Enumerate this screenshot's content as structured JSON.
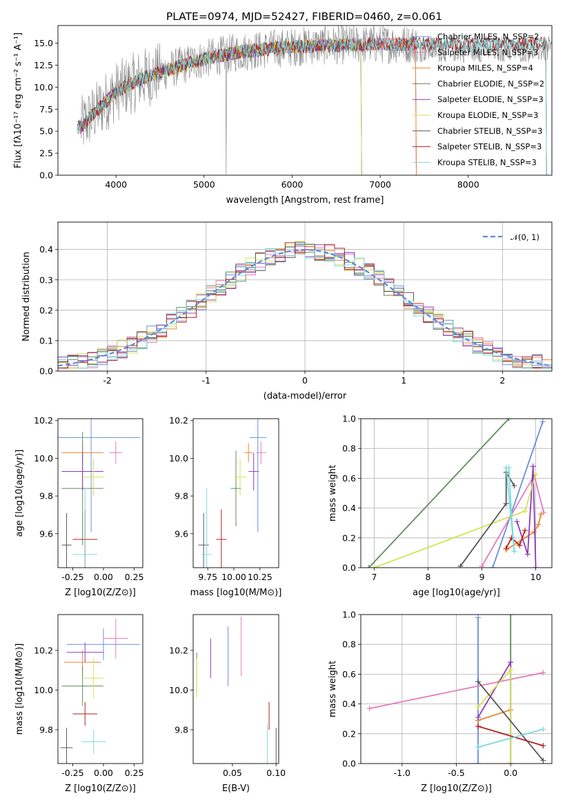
{
  "figure": {
    "title": "PLATE=0974, MJD=52427, FIBERID=0460, z=0.061"
  },
  "colors": [
    "#6a8edb",
    "#e67aba",
    "#e6862e",
    "#5e8c5b",
    "#8e3ab8",
    "#d4e356",
    "#555555",
    "#b51e1e",
    "#7dd9dc"
  ],
  "chart_data": [
    {
      "id": "spectrum",
      "type": "line",
      "title": "PLATE=0974, MJD=52427, FIBERID=0460, z=0.061",
      "xlabel": "wavelength [Angstrom, rest frame]",
      "ylabel": "Flux [fλ10⁻¹⁷ erg cm⁻² s⁻¹ A⁻¹]",
      "xlim": [
        3340,
        8950
      ],
      "ylim": [
        0,
        17
      ],
      "xticks": [
        4000,
        5000,
        6000,
        7000,
        8000
      ],
      "yticks": [
        0.0,
        2.5,
        5.0,
        7.5,
        10.0,
        12.5,
        15.0
      ],
      "legend_position": "top-right",
      "data_color": "#808080",
      "continuum": {
        "x": [
          3600,
          3800,
          4000,
          4300,
          4600,
          5000,
          5400,
          5800,
          6200,
          6600,
          7000,
          7200,
          7400
        ],
        "y": [
          5.5,
          7.5,
          9.5,
          11.0,
          12.0,
          13.2,
          14.0,
          14.4,
          14.7,
          14.8,
          14.9,
          14.9,
          14.9
        ]
      },
      "series": [
        {
          "name": "Chabrier MILES, N_SSP=2",
          "x_end": 7420
        },
        {
          "name": "Salpeter MILES, N_SSP=3",
          "x_end": 7420
        },
        {
          "name": "Kroupa MILES, N_SSP=4",
          "x_end": 7420
        },
        {
          "name": "Chabrier ELODIE, N_SSP=2",
          "x_end": 6800
        },
        {
          "name": "Salpeter ELODIE, N_SSP=3",
          "x_end": 6800
        },
        {
          "name": "Kroupa ELODIE, N_SSP=3",
          "x_end": 6800
        },
        {
          "name": "Chabrier STELIB, N_SSP=3",
          "x_end": 8900
        },
        {
          "name": "Salpeter STELIB, N_SSP=3",
          "x_end": 8900
        },
        {
          "name": "Kroupa STELIB, N_SSP=3",
          "x_end": 8900
        }
      ]
    },
    {
      "id": "residuals",
      "type": "histogram",
      "xlabel": "(data-model)/error",
      "ylabel": "Normed distribution",
      "xlim": [
        -2.5,
        2.5
      ],
      "ylim": [
        0,
        0.49
      ],
      "xticks": [
        -2,
        -1,
        0,
        1,
        2
      ],
      "yticks": [
        0.0,
        0.1,
        0.2,
        0.3,
        0.4
      ],
      "grid": true,
      "legend": {
        "label": "𝒩(0, 1)",
        "position": "top-right",
        "color": "#5b8ad9"
      },
      "bin_width": 0.1,
      "bin_start": -2.5,
      "series_count": 9
    },
    {
      "id": "age_vs_Z",
      "type": "errorbar",
      "xlabel": "Z [log10(Z/Z⊙)]",
      "ylabel": "age [log10(age/yr)]",
      "xlim": [
        -0.37,
        0.32
      ],
      "ylim": [
        9.42,
        10.21
      ],
      "xticks": [
        -0.25,
        0.0,
        0.25
      ],
      "yticks": [
        9.6,
        9.8,
        10.0,
        10.2
      ],
      "points": [
        {
          "x": -0.1,
          "y": 10.11,
          "xerr": 0.4,
          "yerr": 0.5
        },
        {
          "x": 0.1,
          "y": 10.03,
          "xerr": 0.05,
          "yerr": 0.06
        },
        {
          "x": -0.17,
          "y": 10.03,
          "xerr": 0.17,
          "yerr": 0.05
        },
        {
          "x": -0.17,
          "y": 9.84,
          "xerr": 0.17,
          "yerr": 0.3
        },
        {
          "x": -0.17,
          "y": 9.93,
          "xerr": 0.17,
          "yerr": 0.1
        },
        {
          "x": -0.08,
          "y": 9.9,
          "xerr": 0.08,
          "yerr": 0.1
        },
        {
          "x": -0.3,
          "y": 9.54,
          "xerr": 0.04,
          "yerr": 0.17
        },
        {
          "x": -0.15,
          "y": 9.57,
          "xerr": 0.1,
          "yerr": 0.16
        },
        {
          "x": -0.15,
          "y": 9.49,
          "xerr": 0.1,
          "yerr": 0.35
        }
      ]
    },
    {
      "id": "age_vs_mass",
      "type": "errorbar",
      "xlabel": "mass [log10(M/M⊙)]",
      "ylabel": "",
      "xlim": [
        9.61,
        10.43
      ],
      "ylim": [
        9.42,
        10.21
      ],
      "xticks": [
        9.75,
        10.0,
        10.25
      ],
      "yticks": [
        9.6,
        9.8,
        10.0,
        10.2
      ],
      "points": [
        {
          "x": 10.23,
          "y": 10.11,
          "xerr": 0.08,
          "yerr": 0.5
        },
        {
          "x": 10.26,
          "y": 10.03,
          "xerr": 0.05,
          "yerr": 0.06
        },
        {
          "x": 10.14,
          "y": 10.03,
          "xerr": 0.04,
          "yerr": 0.05
        },
        {
          "x": 10.02,
          "y": 9.84,
          "xerr": 0.05,
          "yerr": 0.2
        },
        {
          "x": 10.19,
          "y": 9.93,
          "xerr": 0.05,
          "yerr": 0.1
        },
        {
          "x": 10.06,
          "y": 9.9,
          "xerr": 0.06,
          "yerr": 0.1
        },
        {
          "x": 9.71,
          "y": 9.54,
          "xerr": 0.05,
          "yerr": 0.17
        },
        {
          "x": 9.88,
          "y": 9.57,
          "xerr": 0.05,
          "yerr": 0.16
        },
        {
          "x": 9.74,
          "y": 9.49,
          "xerr": 0.05,
          "yerr": 0.35
        }
      ]
    },
    {
      "id": "weight_vs_age",
      "type": "line",
      "xlabel": "age  [log10(age/yr)]",
      "ylabel": "mass weight",
      "xlim": [
        6.75,
        10.3
      ],
      "ylim": [
        0,
        1
      ],
      "xticks": [
        7,
        8,
        9,
        10
      ],
      "yticks": [
        0.0,
        0.2,
        0.4,
        0.6,
        0.8,
        1.0
      ],
      "grid": true,
      "series": [
        {
          "x": [
            9.2,
            10.13
          ],
          "y": [
            0.0,
            0.98
          ]
        },
        {
          "x": [
            9.0,
            9.97,
            10.15
          ],
          "y": [
            0.01,
            0.62,
            0.37
          ]
        },
        {
          "x": [
            9.45,
            9.97,
            10.05,
            10.1
          ],
          "y": [
            0.12,
            0.24,
            0.29,
            0.36
          ]
        },
        {
          "x": [
            6.9,
            9.5
          ],
          "y": [
            0.0,
            1.0
          ]
        },
        {
          "x": [
            9.65,
            9.85,
            9.95,
            10.0
          ],
          "y": [
            0.31,
            0.09,
            0.68,
            0.0
          ]
        },
        {
          "x": [
            7.0,
            9.8,
            10.0
          ],
          "y": [
            0.0,
            0.38,
            0.63
          ]
        },
        {
          "x": [
            8.6,
            9.45,
            9.45,
            9.6
          ],
          "y": [
            0.01,
            0.43,
            0.64,
            0.55
          ]
        },
        {
          "x": [
            9.45,
            9.55,
            9.7,
            9.8
          ],
          "y": [
            0.13,
            0.2,
            0.15,
            0.25
          ]
        },
        {
          "x": [
            9.5,
            9.55,
            9.6,
            9.45
          ],
          "y": [
            0.67,
            0.35,
            0.11,
            0.67
          ]
        }
      ]
    },
    {
      "id": "mass_vs_Z",
      "type": "errorbar",
      "xlabel": "Z [log10(Z/Z⊙)]",
      "ylabel": "mass [log10(M/M⊙)]",
      "xlim": [
        -0.37,
        0.32
      ],
      "ylim": [
        9.63,
        10.38
      ],
      "xticks": [
        -0.25,
        0.0,
        0.25
      ],
      "yticks": [
        9.8,
        10.0,
        10.2
      ],
      "points": [
        {
          "x": 0.0,
          "y": 10.23,
          "xerr": 0.3,
          "yerr": 0.08
        },
        {
          "x": 0.1,
          "y": 10.26,
          "xerr": 0.1,
          "yerr": 0.1
        },
        {
          "x": -0.17,
          "y": 10.14,
          "xerr": 0.15,
          "yerr": 0.06
        },
        {
          "x": -0.17,
          "y": 10.02,
          "xerr": 0.17,
          "yerr": 0.1
        },
        {
          "x": -0.15,
          "y": 10.19,
          "xerr": 0.15,
          "yerr": 0.05
        },
        {
          "x": -0.08,
          "y": 10.06,
          "xerr": 0.08,
          "yerr": 0.1
        },
        {
          "x": -0.3,
          "y": 9.71,
          "xerr": 0.05,
          "yerr": 0.1
        },
        {
          "x": -0.15,
          "y": 9.88,
          "xerr": 0.1,
          "yerr": 0.06
        },
        {
          "x": -0.08,
          "y": 9.74,
          "xerr": 0.1,
          "yerr": 0.06
        }
      ]
    },
    {
      "id": "mass_vs_ebv",
      "type": "errorbar",
      "xlabel": "E(B-V)",
      "ylabel": "",
      "xlim": [
        0.005,
        0.103
      ],
      "ylim": [
        9.63,
        10.38
      ],
      "xticks": [
        0.05,
        0.1
      ],
      "yticks": [
        9.8,
        10.0,
        10.2
      ],
      "points": [
        {
          "x": 0.045,
          "y": 10.17,
          "yerr": 0.15
        },
        {
          "x": 0.06,
          "y": 10.22,
          "yerr": 0.15
        },
        {
          "x": 0.009,
          "y": 10.07,
          "yerr": 0.1
        },
        {
          "x": 0.009,
          "y": 10.09,
          "yerr": 0.1
        },
        {
          "x": 0.025,
          "y": 10.16,
          "yerr": 0.1
        },
        {
          "x": 0.009,
          "y": 10.06,
          "yerr": 0.1
        },
        {
          "x": 0.1,
          "y": 9.68,
          "yerr": 0.13
        },
        {
          "x": 0.092,
          "y": 9.87,
          "yerr": 0.07
        },
        {
          "x": 0.09,
          "y": 9.73,
          "yerr": 0.1
        }
      ]
    },
    {
      "id": "weight_vs_Z",
      "type": "line",
      "xlabel": "Z [log10(Z/Z⊙)]",
      "ylabel": "mass weight",
      "xlim": [
        -1.38,
        0.38
      ],
      "ylim": [
        0,
        1
      ],
      "xticks": [
        -1.0,
        -0.5,
        0.0
      ],
      "yticks": [
        0.0,
        0.2,
        0.4,
        0.6,
        0.8,
        1.0
      ],
      "grid": true,
      "series": [
        {
          "x": [
            -0.3,
            -0.3
          ],
          "y": [
            0.0,
            0.98
          ]
        },
        {
          "x": [
            -1.3,
            0.3
          ],
          "y": [
            0.37,
            0.61
          ]
        },
        {
          "x": [
            -0.3,
            0.0
          ],
          "y": [
            0.29,
            0.36
          ]
        },
        {
          "x": [
            0.0,
            0.0
          ],
          "y": [
            0.0,
            1.0
          ]
        },
        {
          "x": [
            -0.3,
            0.0,
            0.0
          ],
          "y": [
            0.31,
            0.68,
            0.0
          ]
        },
        {
          "x": [
            -0.3,
            0.0,
            0.0
          ],
          "y": [
            0.38,
            0.63,
            0.0
          ]
        },
        {
          "x": [
            -0.3,
            0.3
          ],
          "y": [
            0.55,
            0.02
          ]
        },
        {
          "x": [
            -0.3,
            0.3
          ],
          "y": [
            0.25,
            0.12
          ]
        },
        {
          "x": [
            -0.3,
            0.3
          ],
          "y": [
            0.11,
            0.23
          ]
        }
      ]
    }
  ]
}
